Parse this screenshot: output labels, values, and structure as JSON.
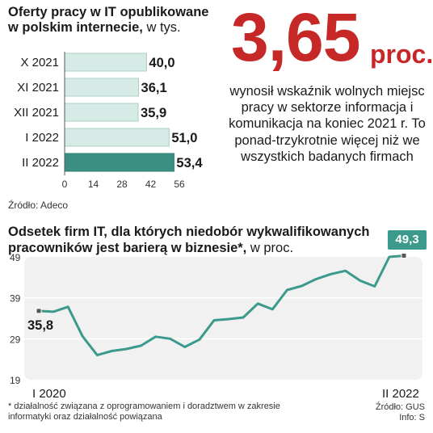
{
  "bar_chart": {
    "title": "Oferty pracy w IT opublikowane w polskim internecie,",
    "unit": " w tys.",
    "source": "Źródło: Adeco"
  },
  "highlight": {
    "value": "3,65",
    "unit": "proc.",
    "description": "wynosił wskaźnik wolnych miejsc pracy w sektorze informacja i komunikacja na koniec 2021 r. To ponad-trzykrotnie więcej niż we wszystkich badanych firmach"
  },
  "line_chart": {
    "title": "Odsetek firm IT, dla których niedobór wykwalifikowanych pracowników jest barierą w biznesie*,",
    "unit": " w proc.",
    "start_label": "I 2020",
    "end_label": "II 2022",
    "start_value_label": "35,8",
    "end_value_label": "49,3",
    "footnote": "* działalność związana z oprogramowaniem i doradztwem w zakresie informatyki oraz działalność powiązana",
    "source": "Źródło: GUS",
    "info": "Info: S"
  },
  "chart_data": [
    {
      "type": "bar",
      "orientation": "horizontal",
      "title": "Oferty pracy w IT opublikowane w polskim internecie, w tys.",
      "categories": [
        "X 2021",
        "XI 2021",
        "XII 2021",
        "I 2022",
        "II 2022"
      ],
      "values": [
        40.0,
        36.1,
        35.9,
        51.0,
        53.4
      ],
      "value_labels": [
        "40,0",
        "36,1",
        "35,9",
        "51,0",
        "53,4"
      ],
      "xlim": [
        0,
        56
      ],
      "xticks": [
        0,
        14,
        28,
        42,
        56
      ],
      "bar_color": "#d6ebe6",
      "highlight_color": "#3b8f80",
      "highlight_index": 4
    },
    {
      "type": "line",
      "title": "Odsetek firm IT, dla których niedobór wykwalifikowanych pracowników jest barierą w biznesie*, w proc.",
      "ylim": [
        19,
        49
      ],
      "yticks": [
        19,
        29,
        39,
        49
      ],
      "grid": true,
      "line_color": "#3b9a8b",
      "values": [
        35.8,
        35.6,
        36.8,
        29.6,
        25.0,
        26.0,
        26.5,
        27.3,
        29.5,
        29.0,
        27.0,
        28.8,
        33.5,
        33.8,
        34.2,
        37.6,
        36.2,
        40.9,
        41.9,
        43.6,
        44.8,
        45.6,
        43.2,
        41.8,
        49.0,
        49.3
      ]
    }
  ]
}
